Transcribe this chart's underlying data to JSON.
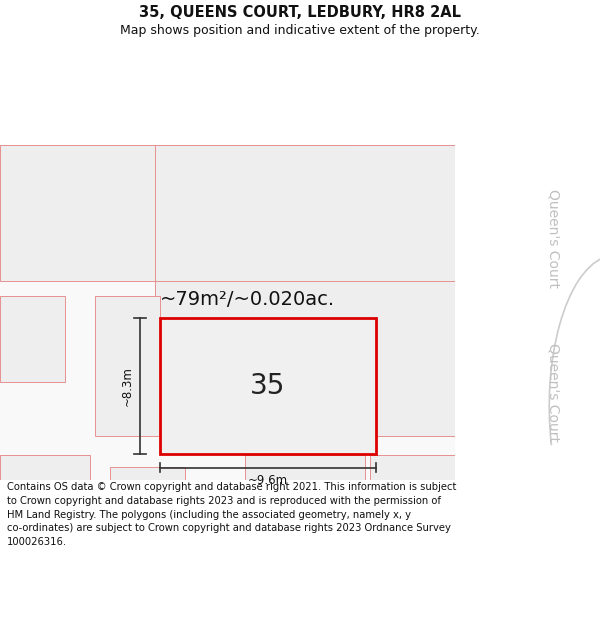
{
  "title_line1": "35, QUEENS COURT, LEDBURY, HR8 2AL",
  "title_line2": "Map shows position and indicative extent of the property.",
  "footer_text": "Contains OS data © Crown copyright and database right 2021. This information is subject\nto Crown copyright and database rights 2023 and is reproduced with the permission of\nHM Land Registry. The polygons (including the associated geometry, namely x, y\nco-ordinates) are subject to Crown copyright and database rights 2023 Ordnance Survey\n100026316.",
  "bg_color": "#ffffff",
  "parcel_fill": "#eeeeee",
  "main_fill": "#efefef",
  "topleft_fill": "#e8e8e8",
  "red_border": "#dd0000",
  "pink_border": "#e89090",
  "area_text": "~79m²/~0.020ac.",
  "plot_label": "35",
  "width_label": "~9.6m",
  "height_label": "~8.3m",
  "road_label": "Queen's Court",
  "title_fontsize": 10.5,
  "subtitle_fontsize": 9,
  "footer_fontsize": 7.2,
  "area_fontsize": 14,
  "plot_label_fontsize": 20,
  "dim_fontsize": 8.5,
  "road_label_fontsize": 10
}
